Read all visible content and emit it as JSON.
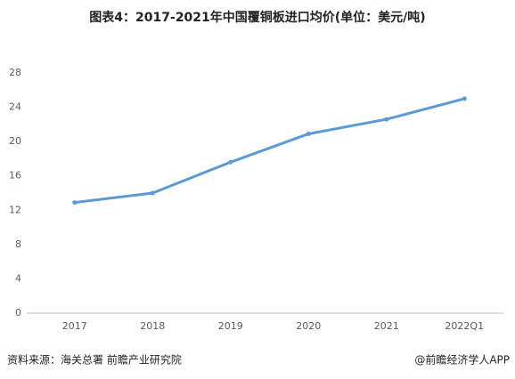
{
  "chart_data": {
    "type": "line",
    "title": "图表4：2017-2021年中国覆铜板进口均价(单位：美元/吨)",
    "categories": [
      "2017",
      "2018",
      "2019",
      "2020",
      "2021",
      "2022Q1"
    ],
    "series": [
      {
        "color": "#5b9bd5",
        "values": [
          12.9,
          14.0,
          17.6,
          20.9,
          22.6,
          25.0
        ]
      }
    ],
    "ylim": [
      0,
      28
    ],
    "yticks": [
      0,
      4,
      8,
      12,
      16,
      20,
      24,
      28
    ],
    "grid": false,
    "source": "资料来源：海关总署 前瞻产业研究院",
    "credit": "@前瞻经济学人APP"
  }
}
